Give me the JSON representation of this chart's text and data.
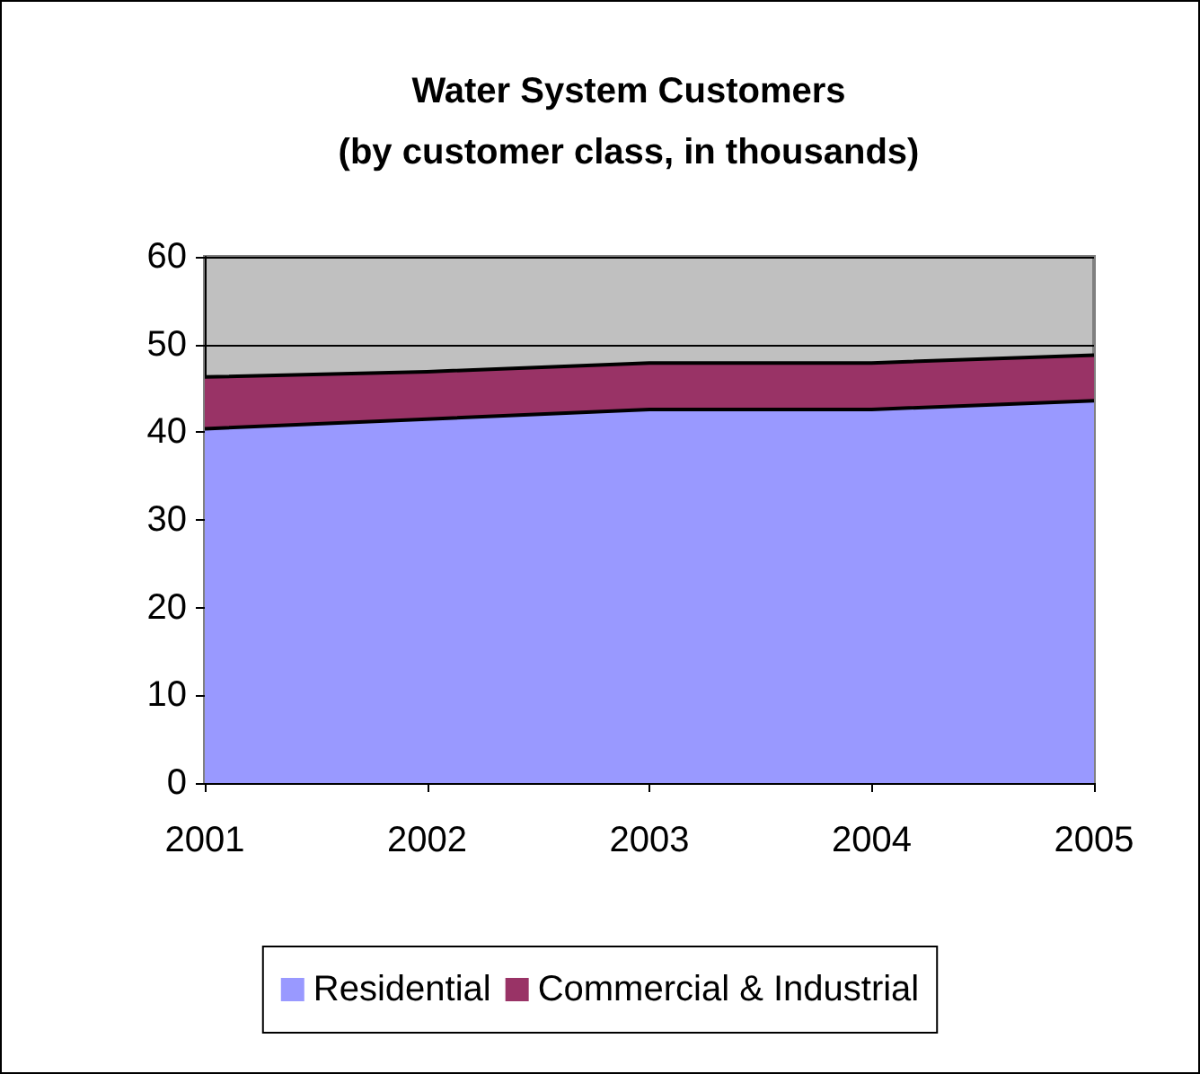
{
  "chart_data": {
    "type": "area",
    "title": "Water System Customers\n(by customer class, in thousands)",
    "categories": [
      "2001",
      "2002",
      "2003",
      "2004",
      "2005"
    ],
    "stacked": true,
    "series": [
      {
        "name": "Residential",
        "color": "#9999ff",
        "values": [
          40.4,
          41.5,
          42.6,
          42.6,
          43.6
        ]
      },
      {
        "name": "Commercial & Industrial",
        "color": "#993366",
        "values": [
          5.9,
          5.4,
          5.3,
          5.3,
          5.2
        ]
      }
    ],
    "ylim": [
      0,
      60
    ],
    "yticks": [
      0,
      10,
      20,
      30,
      40,
      50,
      60
    ],
    "grid": "y",
    "legend": "bottom",
    "marker": "none"
  }
}
